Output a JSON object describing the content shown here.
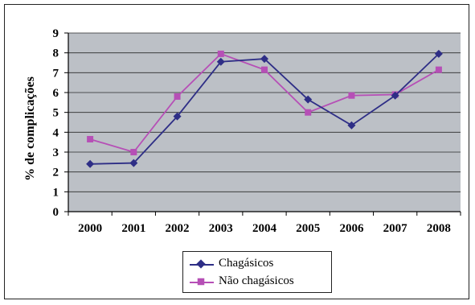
{
  "chart_data": {
    "type": "line",
    "categories": [
      "2000",
      "2001",
      "2002",
      "2003",
      "2004",
      "2005",
      "2006",
      "2007",
      "2008"
    ],
    "series": [
      {
        "name": "Chagásicos",
        "values": [
          2.4,
          2.45,
          4.8,
          7.55,
          7.7,
          5.65,
          4.35,
          5.85,
          7.95
        ],
        "color": "#2E2E86",
        "marker": "diamond"
      },
      {
        "name": "Não chagásicos",
        "values": [
          3.65,
          3.0,
          5.8,
          7.95,
          7.15,
          5.0,
          5.85,
          5.9,
          7.15
        ],
        "color": "#B64FB6",
        "marker": "square"
      }
    ],
    "title": "",
    "xlabel": "",
    "ylabel": "% de complicações",
    "ylim": [
      0,
      9
    ],
    "yticks": [
      "0",
      "1",
      "2",
      "3",
      "4",
      "5",
      "6",
      "7",
      "8",
      "9"
    ],
    "grid": true,
    "plot_background": "#BCC0C6",
    "legend_position": "bottom"
  }
}
